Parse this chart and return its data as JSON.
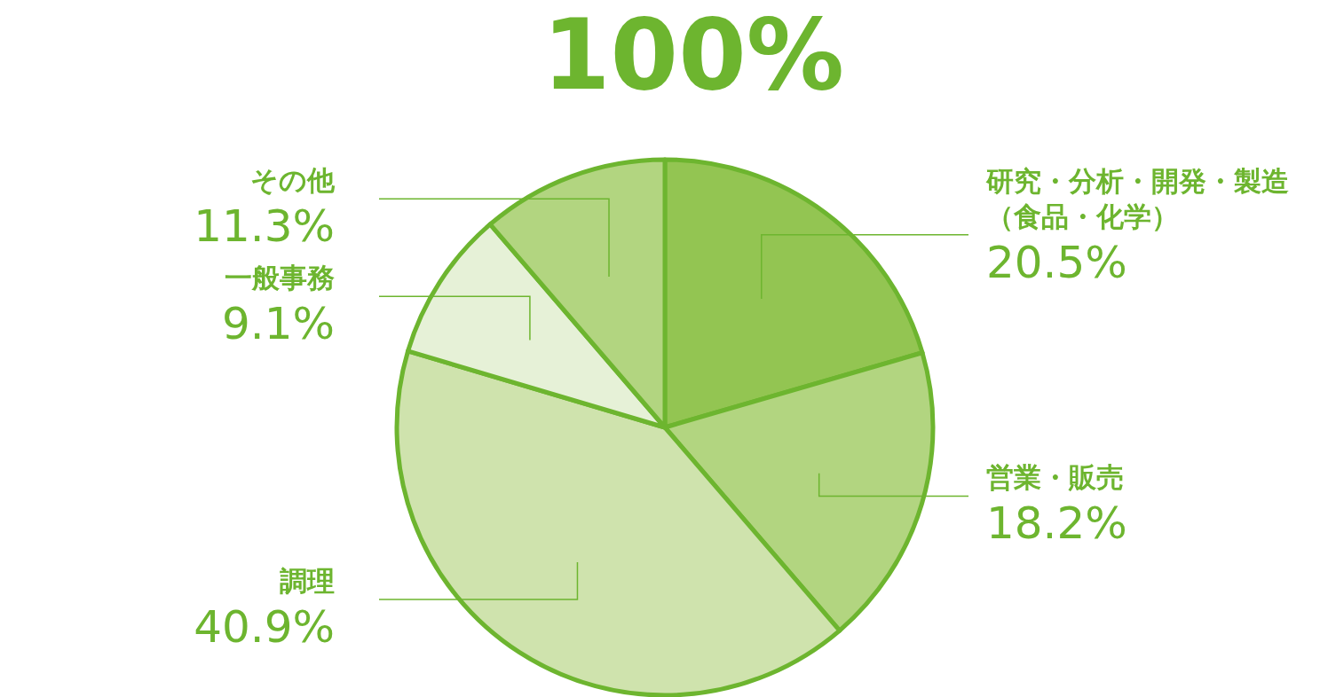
{
  "chart_data": {
    "type": "pie",
    "title": "100%",
    "categories": [
      "研究・分析・開発・製造（食品・化学）",
      "営業・販売",
      "調理",
      "一般事務",
      "その他"
    ],
    "values": [
      20.5,
      18.2,
      40.9,
      9.1,
      11.3
    ],
    "value_labels": [
      "20.5%",
      "18.2%",
      "40.9%",
      "9.1%",
      "11.3%"
    ],
    "colors": [
      "#93c552",
      "#b2d580",
      "#cfe3ad",
      "#e6f1d7",
      "#b2d580"
    ]
  }
}
